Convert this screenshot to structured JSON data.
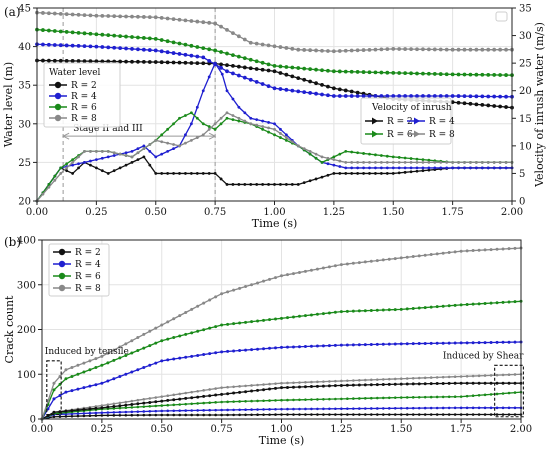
{
  "colors": {
    "R2": "#111111",
    "R4": "#1f1fd0",
    "R6": "#1a8a1a",
    "R8": "#888888",
    "grid": "#e3e3e3",
    "marker_line": "#999999"
  },
  "chart_data": [
    {
      "id": "a",
      "panel_label": "(a)",
      "type": "line",
      "xlabel": "Time (s)",
      "ylabel_left": "Water level (m)",
      "ylabel_right": "Velocity of inrush water (m/s)",
      "xlim": [
        0,
        2
      ],
      "ylim_left": [
        20,
        45
      ],
      "ylim_right": [
        0,
        35
      ],
      "xticks": [
        "0.00",
        "0.25",
        "0.50",
        "0.75",
        "1.00",
        "1.25",
        "1.50",
        "1.75",
        "2.00"
      ],
      "yticks_left": [
        "20",
        "25",
        "30",
        "35",
        "40",
        "45"
      ],
      "yticks_right": [
        "0",
        "5",
        "10",
        "15",
        "20",
        "25",
        "30",
        "35"
      ],
      "grid": true,
      "legend_left": {
        "title": "Water level",
        "placement": "center-left",
        "entries": [
          "R = 2",
          "R = 4",
          "R = 6",
          "R = 8"
        ]
      },
      "legend_right": {
        "title": "Velocity of inrush",
        "placement": "center-right",
        "entries": [
          "R = 2",
          "R = 4",
          "R = 6",
          "R = 8"
        ]
      },
      "annotations": [
        {
          "text": "Stage II and III",
          "x_start": 0.11,
          "x_end": 0.75,
          "y_left": 28.4
        }
      ],
      "vlines": [
        0.11,
        0.75
      ],
      "water_level": [
        {
          "name": "R = 2",
          "x": [
            0,
            0.25,
            0.5,
            0.75,
            1.0,
            1.25,
            1.5,
            1.75,
            2.0
          ],
          "y": [
            38.2,
            38.1,
            38.0,
            37.8,
            36.8,
            34.6,
            33.2,
            32.8,
            32.1
          ]
        },
        {
          "name": "R = 4",
          "x": [
            0,
            0.25,
            0.5,
            0.7,
            0.8,
            1.0,
            1.25,
            1.5,
            1.75,
            2.0
          ],
          "y": [
            40.3,
            40.0,
            39.5,
            38.6,
            36.8,
            34.6,
            33.6,
            33.6,
            33.6,
            33.5
          ]
        },
        {
          "name": "R = 6",
          "x": [
            0,
            0.25,
            0.5,
            0.75,
            1.0,
            1.25,
            1.5,
            1.75,
            2.0
          ],
          "y": [
            42.2,
            41.6,
            41.0,
            39.5,
            37.5,
            36.8,
            36.6,
            36.4,
            36.3
          ]
        },
        {
          "name": "R = 8",
          "x": [
            0,
            0.25,
            0.5,
            0.75,
            0.9,
            1.1,
            1.25,
            1.5,
            1.75,
            2.0
          ],
          "y": [
            44.4,
            44.0,
            43.8,
            43.0,
            40.5,
            39.6,
            39.4,
            39.7,
            39.6,
            39.6
          ]
        }
      ],
      "velocity": [
        {
          "name": "R = 2",
          "x": [
            0,
            0.05,
            0.1,
            0.15,
            0.2,
            0.3,
            0.4,
            0.45,
            0.5,
            0.6,
            0.75,
            0.8,
            0.9,
            1.0,
            1.1,
            1.25,
            1.5,
            1.75,
            2.0
          ],
          "y": [
            0,
            3,
            6,
            5,
            7,
            5,
            7,
            8,
            5,
            5,
            5,
            3,
            3,
            3,
            3,
            5,
            5,
            6,
            6
          ]
        },
        {
          "name": "R = 4",
          "x": [
            0,
            0.1,
            0.2,
            0.3,
            0.4,
            0.45,
            0.5,
            0.6,
            0.65,
            0.7,
            0.75,
            0.78,
            0.8,
            0.85,
            0.9,
            1.0,
            1.1,
            1.2,
            1.3,
            1.5,
            1.75,
            2.0
          ],
          "y": [
            0,
            6,
            7,
            8,
            9,
            10,
            8,
            10,
            14,
            20,
            25,
            23,
            20,
            17,
            15,
            14,
            10,
            7,
            6,
            6,
            6,
            6
          ]
        },
        {
          "name": "R = 6",
          "x": [
            0,
            0.1,
            0.2,
            0.3,
            0.4,
            0.5,
            0.6,
            0.65,
            0.7,
            0.75,
            0.8,
            0.9,
            1.0,
            1.1,
            1.2,
            1.25,
            1.3,
            1.5,
            1.75,
            2.0
          ],
          "y": [
            0,
            6,
            9,
            9,
            8,
            11,
            15,
            16,
            14,
            13,
            15,
            14,
            12,
            10,
            7,
            8,
            9,
            8,
            7,
            7
          ]
        },
        {
          "name": "R = 8",
          "x": [
            0,
            0.1,
            0.2,
            0.3,
            0.4,
            0.5,
            0.6,
            0.7,
            0.75,
            0.8,
            0.9,
            1.0,
            1.1,
            1.2,
            1.3,
            1.4,
            1.5,
            1.75,
            2.0
          ],
          "y": [
            0,
            5,
            9,
            9,
            8,
            11,
            10,
            12,
            14,
            16,
            14,
            13,
            10,
            8,
            7,
            7,
            7,
            7,
            7
          ]
        }
      ]
    },
    {
      "id": "b",
      "panel_label": "(b)",
      "type": "line",
      "xlabel": "Time (s)",
      "ylabel": "Crack count",
      "xlim": [
        0,
        2
      ],
      "ylim": [
        0,
        400
      ],
      "xticks": [
        "0.00",
        "0.25",
        "0.50",
        "0.75",
        "1.00",
        "1.25",
        "1.50",
        "1.75",
        "2.00"
      ],
      "yticks": [
        "0",
        "100",
        "200",
        "300",
        "400"
      ],
      "grid": true,
      "legend": {
        "placement": "top-left",
        "entries": [
          "R = 2",
          "R = 4",
          "R = 6",
          "R = 8"
        ]
      },
      "annotations": [
        {
          "text": "Induced by tensile",
          "box_x": [
            0.02,
            0.08
          ],
          "box_y": [
            10,
            130
          ]
        },
        {
          "text": "Induced by Shear",
          "box_x": [
            1.89,
            2.01
          ],
          "box_y": [
            5,
            120
          ]
        }
      ],
      "tensile_series": [
        {
          "name": "R = 2",
          "x": [
            0,
            0.05,
            0.25,
            0.5,
            0.75,
            1.0,
            1.25,
            1.5,
            1.75,
            2.0
          ],
          "y": [
            0,
            5,
            8,
            9,
            9,
            10,
            10,
            10,
            10,
            10
          ]
        },
        {
          "name": "R = 4",
          "x": [
            0,
            0.05,
            0.25,
            0.5,
            0.75,
            1.0,
            1.25,
            1.5,
            1.75,
            2.0
          ],
          "y": [
            0,
            10,
            14,
            18,
            20,
            22,
            23,
            24,
            25,
            25
          ]
        },
        {
          "name": "R = 6",
          "x": [
            0,
            0.05,
            0.25,
            0.5,
            0.75,
            1.0,
            1.25,
            1.5,
            1.75,
            2.0
          ],
          "y": [
            0,
            12,
            22,
            30,
            38,
            42,
            45,
            48,
            50,
            60
          ]
        },
        {
          "name": "R = 8",
          "x": [
            0,
            0.05,
            0.25,
            0.5,
            0.75,
            1.0,
            1.25,
            1.5,
            1.75,
            2.0
          ],
          "y": [
            0,
            15,
            30,
            50,
            70,
            80,
            85,
            90,
            95,
            100
          ]
        }
      ],
      "total_series": [
        {
          "name": "R = 2",
          "x": [
            0,
            0.05,
            0.25,
            0.5,
            0.75,
            1.0,
            1.25,
            1.5,
            1.75,
            2.0
          ],
          "y": [
            0,
            15,
            25,
            40,
            55,
            70,
            75,
            78,
            80,
            80
          ]
        },
        {
          "name": "R = 4",
          "x": [
            0,
            0.05,
            0.1,
            0.25,
            0.5,
            0.75,
            1.0,
            1.25,
            1.5,
            1.75,
            2.0
          ],
          "y": [
            0,
            45,
            60,
            80,
            130,
            150,
            160,
            165,
            168,
            170,
            172
          ]
        },
        {
          "name": "R = 6",
          "x": [
            0,
            0.05,
            0.1,
            0.25,
            0.5,
            0.75,
            1.0,
            1.25,
            1.5,
            1.75,
            2.0
          ],
          "y": [
            0,
            65,
            90,
            120,
            175,
            210,
            225,
            240,
            245,
            255,
            263
          ]
        },
        {
          "name": "R = 8",
          "x": [
            0,
            0.05,
            0.1,
            0.25,
            0.5,
            0.75,
            1.0,
            1.25,
            1.5,
            1.75,
            2.0
          ],
          "y": [
            0,
            80,
            110,
            140,
            210,
            280,
            320,
            345,
            360,
            375,
            382
          ]
        }
      ]
    }
  ]
}
